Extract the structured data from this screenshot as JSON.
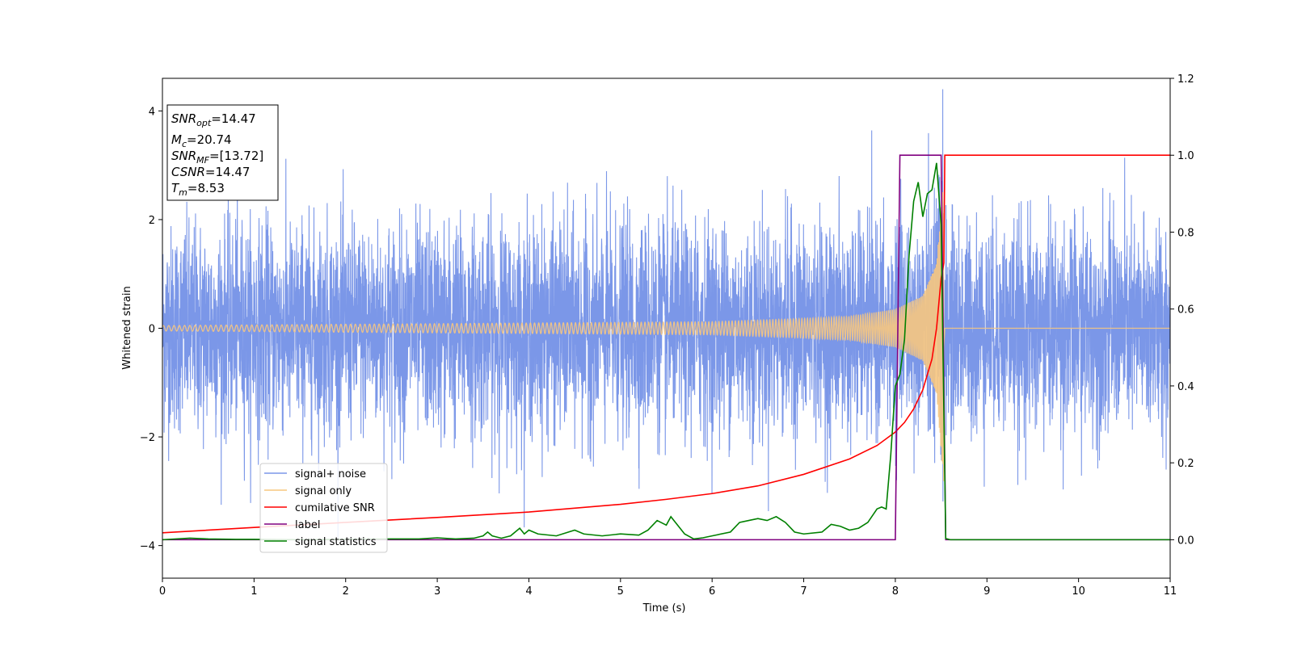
{
  "chart_data": {
    "type": "line",
    "xlabel": "Time (s)",
    "ylabel": "Whitened strain",
    "xlim": [
      0,
      11
    ],
    "ylim_left": [
      -4.6,
      4.6
    ],
    "ylim_right": [
      -0.1,
      1.2
    ],
    "xticks": [
      "0",
      "1",
      "2",
      "3",
      "4",
      "5",
      "6",
      "7",
      "8",
      "9",
      "10",
      "11"
    ],
    "yticks_left": [
      "−4",
      "−2",
      "0",
      "2",
      "4"
    ],
    "yticks_left_values": [
      -4,
      -2,
      0,
      2,
      4
    ],
    "yticks_right": [
      "0.0",
      "0.2",
      "0.4",
      "0.6",
      "0.8",
      "1.0",
      "1.2"
    ],
    "yticks_right_values": [
      0.0,
      0.2,
      0.4,
      0.6,
      0.8,
      1.0,
      1.2
    ],
    "legend_position": "lower-left",
    "info_box": [
      {
        "name": "SNR",
        "sub": "opt",
        "value": "=14.47"
      },
      {
        "name": "M",
        "sub": "c",
        "value": "=20.74"
      },
      {
        "name": "SNR",
        "sub": "MF",
        "value": "=[13.72]"
      },
      {
        "name": "CSNR",
        "sub": "",
        "value": "=14.47"
      },
      {
        "name": "T",
        "sub": "m",
        "value": "=8.53"
      }
    ],
    "series": [
      {
        "name": "signal+ noise",
        "axis": "left",
        "color": "#7b97e8",
        "description_values": {
          "noise_std": 0.95,
          "merger_time": 8.53,
          "duration": 11
        }
      },
      {
        "name": "signal only",
        "axis": "left",
        "color": "#f7c77f",
        "envelope": {
          "x": [
            0,
            6,
            7,
            7.5,
            8,
            8.3,
            8.45,
            8.53,
            8.54
          ],
          "amp": [
            0.05,
            0.12,
            0.18,
            0.22,
            0.35,
            0.6,
            1.2,
            2.9,
            0
          ]
        }
      },
      {
        "name": "cumilative SNR",
        "axis": "right",
        "color": "#ff0000",
        "x": [
          0,
          1,
          2,
          3,
          4,
          5,
          5.5,
          6,
          6.5,
          7,
          7.5,
          7.8,
          8,
          8.1,
          8.2,
          8.3,
          8.4,
          8.45,
          8.5,
          8.53,
          8.54,
          11
        ],
        "y": [
          0.018,
          0.032,
          0.045,
          0.058,
          0.072,
          0.092,
          0.105,
          0.12,
          0.14,
          0.17,
          0.21,
          0.245,
          0.28,
          0.305,
          0.34,
          0.39,
          0.47,
          0.55,
          0.68,
          0.72,
          1.0,
          1.0
        ]
      },
      {
        "name": "label",
        "axis": "right",
        "color": "#800080",
        "x": [
          0,
          8.0,
          8.05,
          8.5,
          8.55,
          11
        ],
        "y": [
          0,
          0,
          1,
          1,
          0,
          0
        ]
      },
      {
        "name": "signal statistics",
        "axis": "right",
        "color": "#008000",
        "x": [
          0,
          0.3,
          0.5,
          0.8,
          1.0,
          1.5,
          2.0,
          2.5,
          2.8,
          3.0,
          3.2,
          3.4,
          3.5,
          3.55,
          3.6,
          3.7,
          3.8,
          3.9,
          3.95,
          4.0,
          4.1,
          4.3,
          4.5,
          4.6,
          4.8,
          5.0,
          5.2,
          5.3,
          5.4,
          5.5,
          5.55,
          5.6,
          5.7,
          5.8,
          5.9,
          6.0,
          6.2,
          6.3,
          6.4,
          6.5,
          6.6,
          6.7,
          6.8,
          6.9,
          7.0,
          7.2,
          7.3,
          7.4,
          7.5,
          7.6,
          7.7,
          7.8,
          7.85,
          7.9,
          7.95,
          8.0,
          8.05,
          8.1,
          8.15,
          8.2,
          8.25,
          8.3,
          8.35,
          8.4,
          8.45,
          8.5,
          8.55,
          8.6,
          11
        ],
        "y": [
          0.0,
          0.004,
          0.002,
          0.001,
          0.001,
          0.0,
          0.001,
          0.002,
          0.002,
          0.005,
          0.002,
          0.004,
          0.01,
          0.02,
          0.01,
          0.004,
          0.01,
          0.03,
          0.015,
          0.025,
          0.015,
          0.01,
          0.025,
          0.015,
          0.01,
          0.015,
          0.012,
          0.025,
          0.05,
          0.038,
          0.06,
          0.045,
          0.015,
          0.002,
          0.005,
          0.01,
          0.02,
          0.045,
          0.05,
          0.055,
          0.05,
          0.06,
          0.045,
          0.02,
          0.015,
          0.02,
          0.04,
          0.035,
          0.025,
          0.03,
          0.045,
          0.08,
          0.085,
          0.08,
          0.22,
          0.4,
          0.43,
          0.52,
          0.74,
          0.88,
          0.93,
          0.84,
          0.9,
          0.91,
          0.98,
          0.82,
          0.003,
          0.0,
          0.0
        ]
      }
    ]
  }
}
